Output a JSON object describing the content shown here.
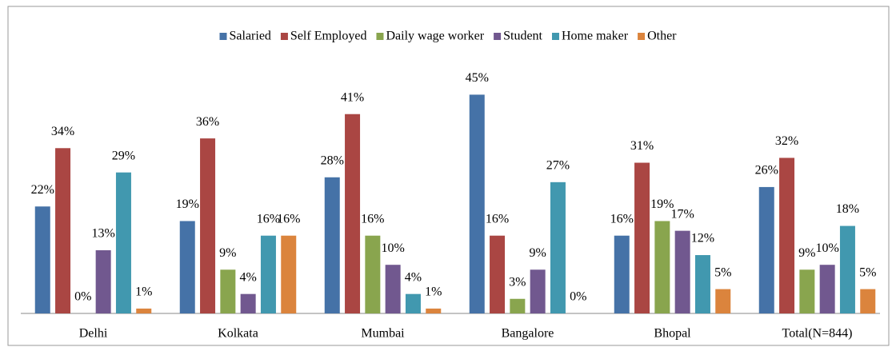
{
  "chart_data": {
    "type": "bar",
    "categories": [
      "Delhi",
      "Kolkata",
      "Mumbai",
      "Bangalore",
      "Bhopal",
      "Total(N=844)"
    ],
    "series": [
      {
        "name": "Salaried",
        "color": "#4572a7",
        "values": [
          22,
          19,
          28,
          45,
          16,
          26
        ],
        "value_labels": [
          "22%",
          "19%",
          "28%",
          "45%",
          "16%",
          "26%"
        ]
      },
      {
        "name": "Self Employed",
        "color": "#aa4643",
        "values": [
          34,
          36,
          41,
          16,
          31,
          32
        ],
        "value_labels": [
          "34%",
          "36%",
          "41%",
          "16%",
          "31%",
          "32%"
        ]
      },
      {
        "name": "Daily wage worker",
        "color": "#89a54e",
        "values": [
          0,
          9,
          16,
          3,
          19,
          9
        ],
        "value_labels": [
          "0%",
          "9%",
          "16%",
          "3%",
          "19%",
          "9%"
        ]
      },
      {
        "name": "Student",
        "color": "#71588f",
        "values": [
          13,
          4,
          10,
          9,
          17,
          10
        ],
        "value_labels": [
          "13%",
          "4%",
          "10%",
          "9%",
          "17%",
          "10%"
        ]
      },
      {
        "name": "Home maker",
        "color": "#4198af",
        "values": [
          29,
          16,
          4,
          27,
          12,
          18
        ],
        "value_labels": [
          "29%",
          "16%",
          "4%",
          "27%",
          "12%",
          "18%"
        ]
      },
      {
        "name": "Other",
        "color": "#db843d",
        "values": [
          1,
          16,
          1,
          0,
          5,
          5
        ],
        "value_labels": [
          "1%",
          "16%",
          "1%",
          "0%",
          "5%",
          "5%"
        ]
      }
    ],
    "ylim": [
      0,
      50
    ],
    "legend": "top"
  }
}
